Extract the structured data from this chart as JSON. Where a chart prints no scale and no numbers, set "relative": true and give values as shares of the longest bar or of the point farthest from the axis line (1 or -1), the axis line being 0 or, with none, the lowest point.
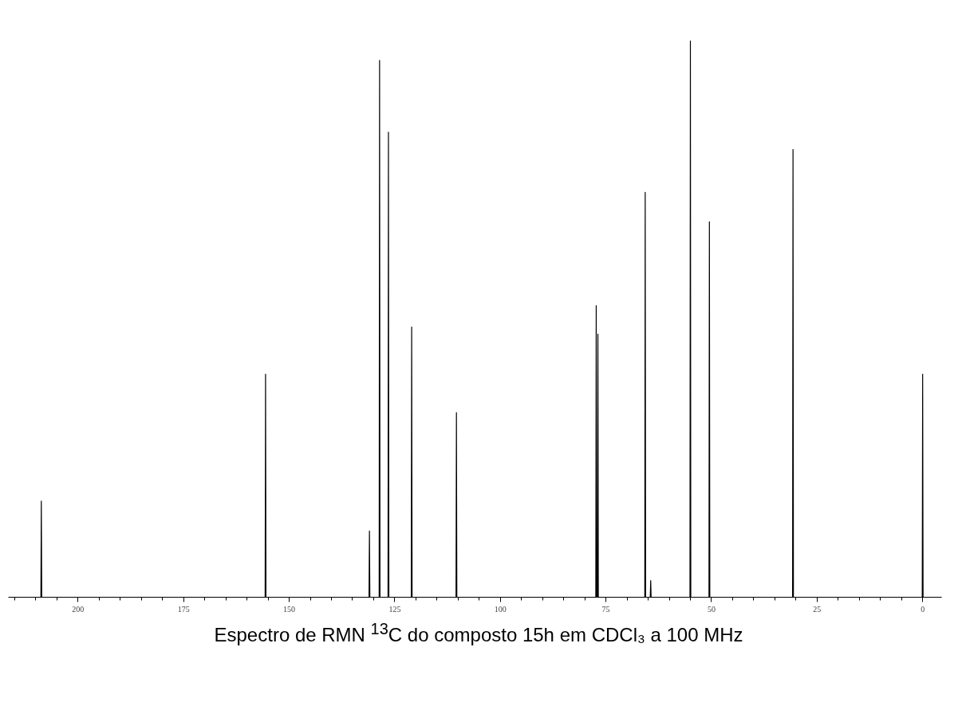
{
  "chart_data": {
    "type": "line",
    "title": "Espectro de RMN $^{13}$C do composto 15h em CDCl₃ a 100 MHz",
    "relative": true,
    "x": [
      216.5,
      208.8,
      208.7,
      208.6,
      155.7,
      155.6,
      155.5,
      131.1,
      131.0,
      130.9,
      128.7,
      128.6,
      128.5,
      126.6,
      126.5,
      126.4,
      121.1,
      121.0,
      120.9,
      110.5,
      110.4,
      110.3,
      77.4,
      77.3,
      77.2,
      77.0,
      76.9,
      76.8,
      65.8,
      65.7,
      65.6,
      64.5,
      64.4,
      64.3,
      55.1,
      55.0,
      54.9,
      50.6,
      50.5,
      50.4,
      30.8,
      30.7,
      30.6,
      0.1,
      0.0,
      -0.1,
      -4.5
    ],
    "values": [
      0,
      0,
      0.173,
      0,
      0,
      0.401,
      0,
      0,
      0.119,
      0,
      0,
      0.965,
      0,
      0,
      0.836,
      0,
      0,
      0.486,
      0,
      0,
      0.332,
      0,
      0,
      0.524,
      0,
      0,
      0.473,
      0,
      0,
      0.728,
      0,
      0,
      0.03,
      0,
      0,
      1.0,
      0,
      0,
      0.675,
      0,
      0,
      0.805,
      0,
      0,
      0.401,
      0,
      0
    ],
    "color": "#000000",
    "xlim": [
      216.5,
      -4.5
    ],
    "xticks": [
      200,
      175,
      150,
      125,
      100,
      75,
      50,
      25,
      0
    ],
    "grid": false,
    "marker": "none",
    "line_style": "solid",
    "tick_labels": "x"
  }
}
